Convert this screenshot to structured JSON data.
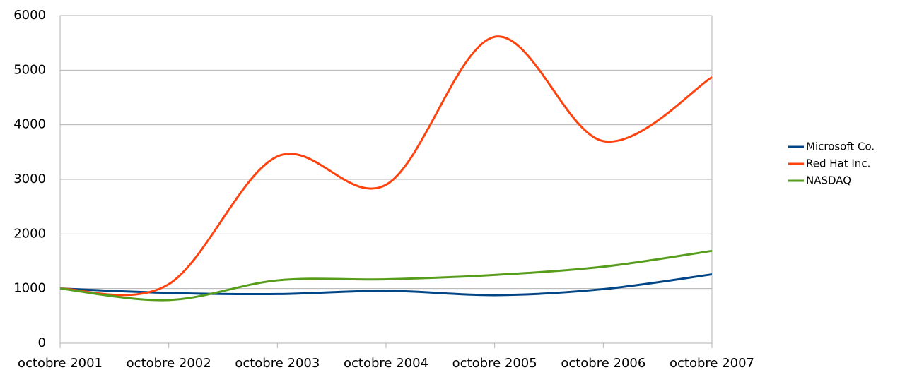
{
  "chart_data": {
    "type": "line",
    "categories": [
      "octobre 2001",
      "octobre 2002",
      "octobre 2003",
      "octobre 2004",
      "octobre 2005",
      "octobre 2006",
      "octobre 2007"
    ],
    "series": [
      {
        "name": "Microsoft Co.",
        "color": "#004586",
        "values": [
          1000,
          920,
          900,
          960,
          880,
          990,
          1260
        ]
      },
      {
        "name": "Red Hat Inc.",
        "color": "#ff420e",
        "values": [
          1000,
          1080,
          3420,
          2900,
          5610,
          3700,
          4870
        ]
      },
      {
        "name": "NASDAQ",
        "color": "#579d1c",
        "values": [
          1000,
          790,
          1150,
          1170,
          1250,
          1400,
          1690
        ]
      }
    ],
    "ylim": [
      0,
      6000
    ],
    "yticks": [
      0,
      1000,
      2000,
      3000,
      4000,
      5000,
      6000
    ],
    "grid": true,
    "smooth": true,
    "legend": "right"
  }
}
